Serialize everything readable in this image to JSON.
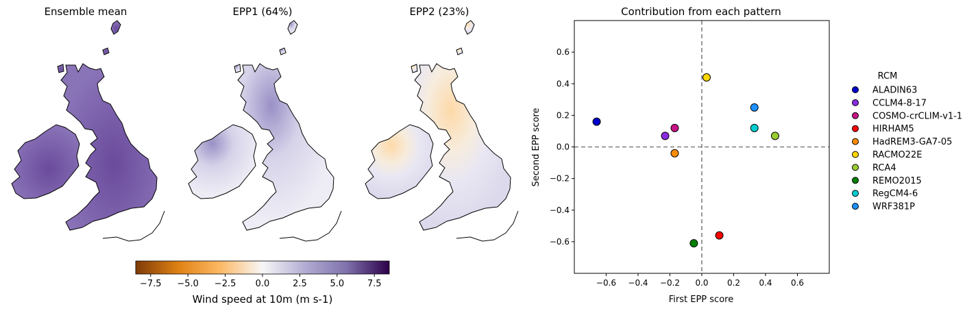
{
  "maps": {
    "panels": [
      {
        "title": "Ensemble mean"
      },
      {
        "title": "EPP1 (64%)"
      },
      {
        "title": "EPP2 (23%)"
      }
    ],
    "colorbar": {
      "label": "Wind speed at 10m (m s-1)",
      "range": [
        -8.5,
        8.5
      ],
      "ticks": [
        "−7.5",
        "−5.0",
        "−2.5",
        "0.0",
        "2.5",
        "5.0",
        "7.5"
      ],
      "tick_values": [
        -7.5,
        -5.0,
        -2.5,
        0.0,
        2.5,
        5.0,
        7.5
      ],
      "colormap": [
        "#7f3b08",
        "#e08214",
        "#fdb863",
        "#f7f7f7",
        "#b2abd2",
        "#8073ac",
        "#2d004b"
      ]
    }
  },
  "chart_data": {
    "type": "scatter",
    "title": "Contribution from each pattern",
    "xlabel": "First EPP score",
    "ylabel": "Second EPP score",
    "xlim": [
      -0.8,
      0.8
    ],
    "ylim": [
      -0.8,
      0.8
    ],
    "xticks": [
      "−0.6",
      "−0.4",
      "−0.2",
      "0.0",
      "0.2",
      "0.4",
      "0.6"
    ],
    "xtick_values": [
      -0.6,
      -0.4,
      -0.2,
      0.0,
      0.2,
      0.4,
      0.6
    ],
    "yticks": [
      "−0.6",
      "−0.4",
      "−0.2",
      "0.0",
      "0.2",
      "0.4",
      "0.6"
    ],
    "ytick_values": [
      -0.6,
      -0.4,
      -0.2,
      0.0,
      0.2,
      0.4,
      0.6
    ],
    "reference_lines": {
      "x": 0.0,
      "y": 0.0,
      "style": "dashed"
    },
    "legend": {
      "title": "RCM",
      "placement": "outside-right"
    },
    "series": [
      {
        "name": "ALADIN63",
        "x": -0.66,
        "y": 0.16,
        "color": "#0000cd"
      },
      {
        "name": "CCLM4-8-17",
        "x": -0.23,
        "y": 0.07,
        "color": "#8a2be2"
      },
      {
        "name": "COSMO-crCLIM-v1-1",
        "x": -0.17,
        "y": 0.12,
        "color": "#c71585"
      },
      {
        "name": "HIRHAM5",
        "x": 0.11,
        "y": -0.56,
        "color": "#ff0000"
      },
      {
        "name": "HadREM3-GA7-05",
        "x": -0.17,
        "y": -0.04,
        "color": "#ff8c00"
      },
      {
        "name": "RACMO22E",
        "x": 0.03,
        "y": 0.44,
        "color": "#ffd700"
      },
      {
        "name": "RCA4",
        "x": 0.46,
        "y": 0.07,
        "color": "#9acd32"
      },
      {
        "name": "REMO2015",
        "x": -0.05,
        "y": -0.61,
        "color": "#008000"
      },
      {
        "name": "RegCM4-6",
        "x": 0.33,
        "y": 0.12,
        "color": "#00ced1"
      },
      {
        "name": "WRF381P",
        "x": 0.33,
        "y": 0.25,
        "color": "#1e90ff"
      }
    ]
  }
}
